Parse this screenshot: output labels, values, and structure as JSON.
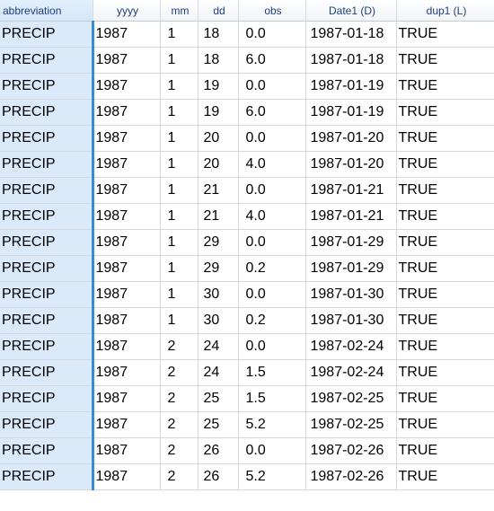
{
  "columns": [
    "abbreviation",
    "yyyy",
    "mm",
    "dd",
    "obs",
    "Date1 (D)",
    "dup1 (L)"
  ],
  "rows": [
    [
      "PRECIP",
      "1987",
      "1",
      "18",
      "0.0",
      "1987-01-18",
      "TRUE"
    ],
    [
      "PRECIP",
      "1987",
      "1",
      "18",
      "6.0",
      "1987-01-18",
      "TRUE"
    ],
    [
      "PRECIP",
      "1987",
      "1",
      "19",
      "0.0",
      "1987-01-19",
      "TRUE"
    ],
    [
      "PRECIP",
      "1987",
      "1",
      "19",
      "6.0",
      "1987-01-19",
      "TRUE"
    ],
    [
      "PRECIP",
      "1987",
      "1",
      "20",
      "0.0",
      "1987-01-20",
      "TRUE"
    ],
    [
      "PRECIP",
      "1987",
      "1",
      "20",
      "4.0",
      "1987-01-20",
      "TRUE"
    ],
    [
      "PRECIP",
      "1987",
      "1",
      "21",
      "0.0",
      "1987-01-21",
      "TRUE"
    ],
    [
      "PRECIP",
      "1987",
      "1",
      "21",
      "4.0",
      "1987-01-21",
      "TRUE"
    ],
    [
      "PRECIP",
      "1987",
      "1",
      "29",
      "0.0",
      "1987-01-29",
      "TRUE"
    ],
    [
      "PRECIP",
      "1987",
      "1",
      "29",
      "0.2",
      "1987-01-29",
      "TRUE"
    ],
    [
      "PRECIP",
      "1987",
      "1",
      "30",
      "0.0",
      "1987-01-30",
      "TRUE"
    ],
    [
      "PRECIP",
      "1987",
      "1",
      "30",
      "0.2",
      "1987-01-30",
      "TRUE"
    ],
    [
      "PRECIP",
      "1987",
      "2",
      "24",
      "0.0",
      "1987-02-24",
      "TRUE"
    ],
    [
      "PRECIP",
      "1987",
      "2",
      "24",
      "1.5",
      "1987-02-24",
      "TRUE"
    ],
    [
      "PRECIP",
      "1987",
      "2",
      "25",
      "1.5",
      "1987-02-25",
      "TRUE"
    ],
    [
      "PRECIP",
      "1987",
      "2",
      "25",
      "5.2",
      "1987-02-25",
      "TRUE"
    ],
    [
      "PRECIP",
      "1987",
      "2",
      "26",
      "0.0",
      "1987-02-26",
      "TRUE"
    ],
    [
      "PRECIP",
      "1987",
      "2",
      "26",
      "5.2",
      "1987-02-26",
      "TRUE"
    ]
  ],
  "colors": {
    "header_text": "#1f3f7a",
    "selected_column_fill": "#daeafa",
    "selected_column_border": "#3a8ad6",
    "gridline": "#d4d8de"
  }
}
